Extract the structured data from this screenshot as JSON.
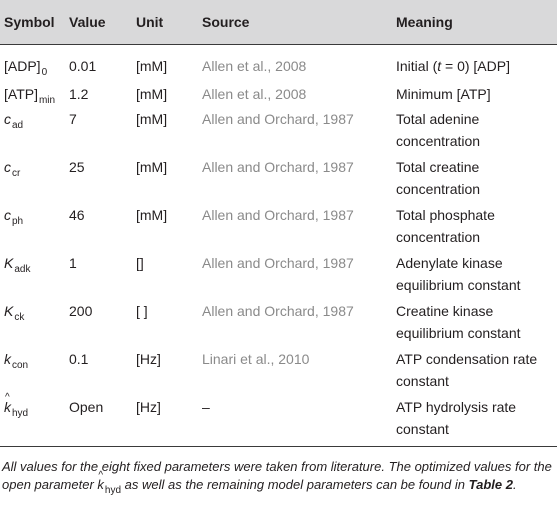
{
  "headers": {
    "symbol": "Symbol",
    "value": "Value",
    "unit": "Unit",
    "source": "Source",
    "meaning": "Meaning"
  },
  "rows": [
    {
      "symbol_base": "[ADP]",
      "symbol_sub": "0",
      "value": "0.01",
      "unit": "[mM]",
      "source": "Allen et al., 2008",
      "meaning_prefix": "Initial (",
      "meaning_t": "t",
      "meaning_mid": " = 0) [ADP]"
    },
    {
      "symbol_base": "[ATP]",
      "symbol_sub": "min",
      "value": "1.2",
      "unit": "[mM]",
      "source": "Allen et al., 2008",
      "meaning_line1": "Minimum [ATP]"
    },
    {
      "symbol_base": "c",
      "symbol_sub": "ad",
      "value": "7",
      "unit": "[mM]",
      "source": "Allen and Orchard, 1987",
      "meaning_line1": "Total adenine",
      "meaning_line2": "concentration"
    },
    {
      "symbol_base": "c",
      "symbol_sub": "cr",
      "value": "25",
      "unit": "[mM]",
      "source": "Allen and Orchard, 1987",
      "meaning_line1": "Total creatine",
      "meaning_line2": "concentration"
    },
    {
      "symbol_base": "c",
      "symbol_sub": "ph",
      "value": "46",
      "unit": "[mM]",
      "source": "Allen and Orchard, 1987",
      "meaning_line1": "Total phosphate",
      "meaning_line2": "concentration"
    },
    {
      "symbol_base": "K",
      "symbol_sub": "adk",
      "value": "1",
      "unit": "[]",
      "source": "Allen and Orchard, 1987",
      "meaning_line1": "Adenylate kinase",
      "meaning_line2": "equilibrium constant"
    },
    {
      "symbol_base": "K",
      "symbol_sub": "ck",
      "value": "200",
      "unit": "[ ]",
      "source": "Allen and Orchard, 1987",
      "meaning_line1": "Creatine kinase",
      "meaning_line2": "equilibrium constant"
    },
    {
      "symbol_base": "k",
      "symbol_sub": "con",
      "value": "0.1",
      "unit": "[Hz]",
      "source": "Linari et al., 2010",
      "meaning_line1": "ATP condensation rate",
      "meaning_line2": "constant"
    },
    {
      "symbol_base": "k",
      "symbol_sub": "hyd",
      "value": "Open",
      "unit": "[Hz]",
      "source": "–",
      "meaning_line1": "ATP hydrolysis rate",
      "meaning_line2": "constant"
    }
  ],
  "caption": {
    "part1": "All values for the eight fixed parameters were taken from literature. The optimized values for the open parameter ",
    "sym_base": "k",
    "sym_sub": "hyd",
    "part2": " as well as the remaining model parameters can be found in ",
    "ref": "Table 2",
    "part3": "."
  }
}
